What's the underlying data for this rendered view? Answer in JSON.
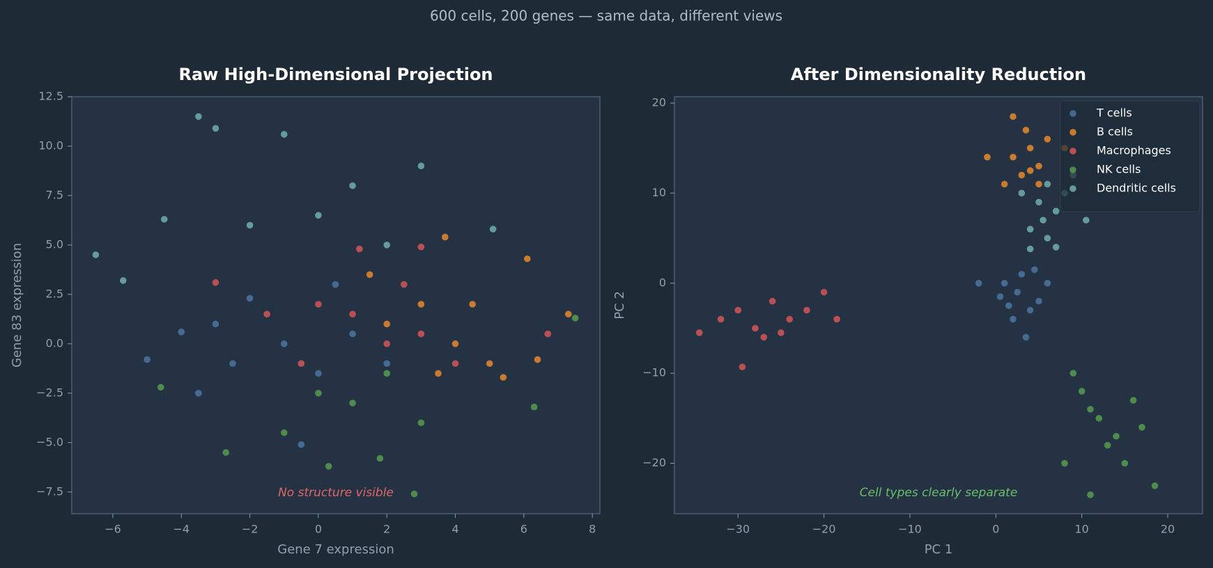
{
  "suptitle": "600 cells, 200 genes — same data, different views",
  "chart_data": [
    {
      "type": "scatter",
      "title": "Raw High-Dimensional Projection",
      "xlabel": "Gene 7 expression",
      "ylabel": "Gene 83 expression",
      "annotation": "No structure visible",
      "annotation_color": "#e06666",
      "xlim": [
        -7.2,
        8.22
      ],
      "ylim": [
        -8.6,
        12.5
      ],
      "xticks": [
        {
          "value": -6,
          "label": "−6"
        },
        {
          "value": -4,
          "label": "−4"
        },
        {
          "value": -2,
          "label": "−2"
        },
        0,
        2,
        4,
        6,
        8
      ],
      "yticks": [
        {
          "value": -7.5,
          "label": "−7.5"
        },
        {
          "value": -5,
          "label": "−5.0"
        },
        {
          "value": -2.5,
          "label": "−2.5"
        },
        {
          "value": 0,
          "label": "0.0"
        },
        2.5,
        {
          "value": 5,
          "label": "5.0"
        },
        7.5,
        {
          "value": 10,
          "label": "10.0"
        },
        12.5
      ],
      "series": [
        {
          "color": "#4e79a7",
          "x": [
            -5,
            -3,
            -2,
            -1,
            0,
            1,
            -2.5,
            -3.5,
            -0.5,
            -4,
            0.5,
            2
          ],
          "y": [
            -0.8,
            1,
            2.3,
            0,
            -1.5,
            0.5,
            -1,
            -2.5,
            -5.1,
            0.6,
            3,
            -1
          ]
        },
        {
          "color": "#f28e2b",
          "x": [
            2,
            3,
            4,
            5,
            3.5,
            6.1,
            7.3,
            6.4,
            4.5,
            1.5,
            5.4,
            3.7
          ],
          "y": [
            1,
            2,
            0,
            -1,
            -1.5,
            4.3,
            1.5,
            -0.8,
            2,
            3.5,
            -1.7,
            5.4
          ]
        },
        {
          "color": "#e15759",
          "x": [
            1,
            2,
            0,
            3,
            -1.5,
            2.5,
            4,
            6.7,
            1.2,
            3,
            -3,
            -0.5
          ],
          "y": [
            1.5,
            0,
            2,
            0.5,
            1.5,
            3,
            -1,
            0.5,
            4.8,
            4.9,
            3.1,
            -1
          ]
        },
        {
          "color": "#59a14f",
          "x": [
            0,
            1,
            2,
            -1,
            0.3,
            1.8,
            2.8,
            3,
            -2.7,
            6.3,
            7.5,
            -4.6
          ],
          "y": [
            -2.5,
            -3,
            -1.5,
            -4.5,
            -6.2,
            -5.8,
            -7.6,
            -4,
            -5.5,
            -3.2,
            1.3,
            -2.2
          ]
        },
        {
          "color": "#76b7b2",
          "x": [
            -3.5,
            -3,
            -1,
            -6.5,
            -5.7,
            -2,
            0,
            1,
            3,
            -4.5,
            5.1,
            2
          ],
          "y": [
            11.5,
            10.9,
            10.6,
            4.5,
            3.2,
            6,
            6.5,
            8,
            9,
            6.3,
            5.8,
            5
          ]
        }
      ]
    },
    {
      "type": "scatter",
      "title": "After Dimensionality Reduction",
      "xlabel": "PC 1",
      "ylabel": "PC 2",
      "annotation": "Cell types clearly separate",
      "annotation_color": "#6abf69",
      "legend": "upper right",
      "xlim": [
        -37.4,
        24.05
      ],
      "ylim": [
        -25.6,
        20.7
      ],
      "xticks": [
        {
          "value": -30,
          "label": "−30"
        },
        {
          "value": -20,
          "label": "−20"
        },
        {
          "value": -10,
          "label": "−10"
        },
        0,
        10,
        20
      ],
      "yticks": [
        {
          "value": -20,
          "label": "−20"
        },
        {
          "value": -10,
          "label": "−10"
        },
        0,
        10,
        20
      ],
      "series": [
        {
          "name": "T cells",
          "color": "#4e79a7",
          "x": [
            1,
            2.5,
            4,
            3,
            5,
            2,
            0.5,
            6,
            3.5,
            1.5,
            4.5,
            -2
          ],
          "y": [
            0,
            -1,
            -3,
            1,
            -2,
            -4,
            -1.5,
            0,
            -6,
            -2.5,
            1.5,
            0
          ]
        },
        {
          "name": "B cells",
          "color": "#f28e2b",
          "x": [
            2,
            3,
            4,
            5,
            1,
            6,
            3.5,
            -1,
            2,
            5,
            8,
            4
          ],
          "y": [
            14,
            12,
            15,
            13,
            11,
            16,
            17,
            14,
            18.5,
            11,
            15,
            12.5
          ]
        },
        {
          "name": "Macrophages",
          "color": "#e15759",
          "x": [
            -30,
            -28,
            -26,
            -24,
            -22,
            -27,
            -25,
            -32,
            -34.5,
            -20,
            -29.5,
            -18.5
          ],
          "y": [
            -3,
            -5,
            -2,
            -4,
            -3,
            -6,
            -5.5,
            -4,
            -5.5,
            -1,
            -9.3,
            -4
          ]
        },
        {
          "name": "NK cells",
          "color": "#59a14f",
          "x": [
            10,
            12,
            14,
            11,
            13,
            16,
            9,
            15,
            8,
            11,
            18.5,
            17
          ],
          "y": [
            -12,
            -15,
            -17,
            -14,
            -18,
            -13,
            -10,
            -20,
            -20,
            -23.5,
            -22.5,
            -16
          ]
        },
        {
          "name": "Dendritic cells",
          "color": "#76b7b2",
          "x": [
            5,
            6,
            7,
            4,
            5.5,
            8,
            3,
            6,
            9,
            10.5,
            7,
            4
          ],
          "y": [
            9,
            11,
            8,
            6,
            7,
            10,
            10,
            5,
            12,
            7,
            4,
            3.8
          ]
        }
      ]
    }
  ]
}
